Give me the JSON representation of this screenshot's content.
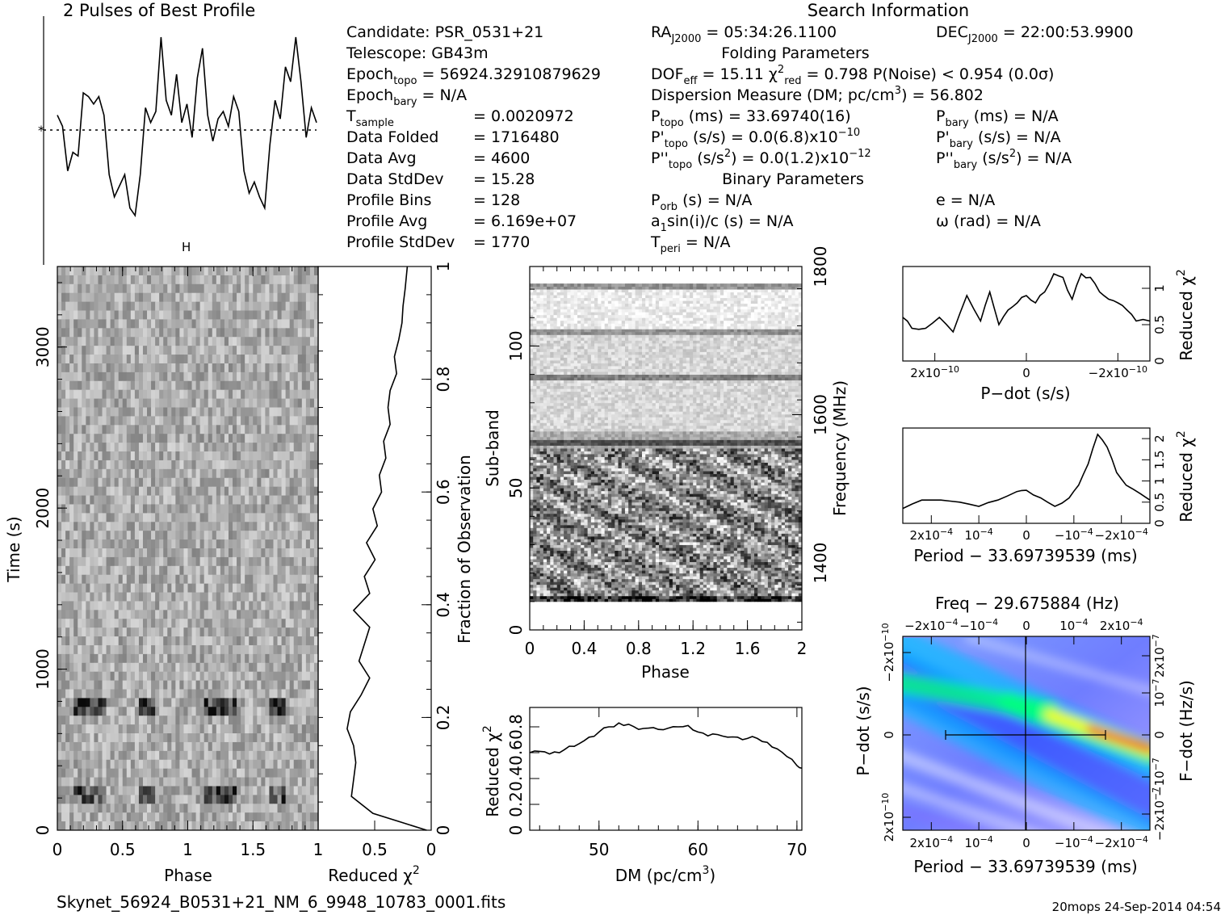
{
  "profile": {
    "title": "2 Pulses of Best Profile",
    "error_bar_label": "H"
  },
  "header": {
    "search_info": "Search Information",
    "folding_params": "Folding Parameters",
    "binary_params": "Binary Parameters"
  },
  "candidate_info": [
    {
      "base": "Candidate:  PSR_0531+21"
    },
    {
      "base": "Telescope:  GB43m"
    },
    {
      "base": "Epoch",
      "sub": "topo",
      "rest": " = 56924.32910879629"
    },
    {
      "base": "Epoch",
      "sub": "bary",
      "rest": " = N/A"
    },
    {
      "base": "T",
      "sub": "sample",
      "rest": "",
      "value": "=   0.0020972"
    },
    {
      "base": "Data Folded",
      "value": "=   1716480"
    },
    {
      "base": "Data Avg",
      "value": "=   4600"
    },
    {
      "base": "Data StdDev",
      "value": "=   15.28"
    },
    {
      "base": "Profile Bins",
      "value": "=   128"
    },
    {
      "base": "Profile Avg",
      "value": "=   6.169e+07"
    },
    {
      "base": "Profile StdDev",
      "value": "=   1770"
    }
  ],
  "search_info": {
    "ra": {
      "base": "RA",
      "sub": "J2000",
      "rest": " = 05:34:26.1100"
    },
    "dec": {
      "base": "DEC",
      "sub": "J2000",
      "rest": " = 22:00:53.9900"
    }
  },
  "folding_lines": {
    "dof_base": "DOF",
    "dof_sub": "eff",
    "dof_rest": " = 15.11   χ",
    "chi_sup": "2",
    "chi_sub": "red",
    "chi_rest": " = 0.798   P(Noise) < 0.954   (0.0σ)",
    "dm_base": "Dispersion Measure (DM; pc/cm",
    "dm_sup": "3",
    "dm_rest": ") = 56.802",
    "ptopo_base": "P",
    "ptopo_sub": "topo",
    "ptopo_rest": " (ms) =  33.69740(16)",
    "pdot_base": "P'",
    "pdot_sub": "topo",
    "pdot_rest": " (s/s) = 0.0(6.8)x10",
    "pdot_exp": "−10",
    "pddot_base": "P''",
    "pddot_sub": "topo",
    "pddot_rest": " (s/s",
    "pddot_sup": "2",
    "pddot_rest2": ") = 0.0(1.2)x10",
    "pddot_exp": "−12",
    "pbary_base": "P",
    "pbary_sub": "bary",
    "pbary_rest": " (ms) = N/A",
    "pdotb_base": "P'",
    "pdotb_sub": "bary",
    "pdotb_rest": " (s/s) = N/A",
    "pddotb_base": "P''",
    "pddotb_sub": "bary",
    "pddotb_rest": " (s/s",
    "pddotb_sup": "2",
    "pddotb_rest2": ") = N/A"
  },
  "binary_lines": {
    "porb_base": "P",
    "porb_sub": "orb",
    "porb_rest": " (s) = N/A",
    "a1_base": "a",
    "a1_sub": "1",
    "a1_rest": "sin(i)/c (s) = N/A",
    "tperi_base": "T",
    "tperi_sub": "peri",
    "tperi_rest": " = N/A",
    "e": "e = N/A",
    "omega": "ω (rad) = N/A"
  },
  "footer": {
    "filename": "Skynet_56924_B0531+21_NM_6_9948_10783_0001.fits",
    "stamp": "20mops 24-Sep-2014 04:54"
  },
  "chart_data": [
    {
      "id": "time-phase",
      "type": "heatmap",
      "xlabel": "Phase",
      "ylabel": "Time (s)",
      "xlim": [
        0,
        2
      ],
      "ylim": [
        0,
        3500
      ],
      "xticks": [
        "0",
        "0.5",
        "1",
        "1.5"
      ],
      "yticks": [
        "0",
        "1000",
        "2000",
        "3000"
      ],
      "right_axis_label": "Fraction of Observation",
      "right_ticks": [
        "0",
        "0.2",
        "0.4",
        "0.6",
        "0.8",
        "1"
      ],
      "dark_bands_time_s": [
        230,
        760
      ]
    },
    {
      "id": "time-chi",
      "type": "line",
      "xlabel": "Reduced χ",
      "xlabel_sup": "2",
      "xticks": [
        "1",
        "0.5",
        "0"
      ],
      "x": [
        0.0,
        0.03,
        0.06,
        0.09,
        0.12,
        0.15,
        0.18,
        0.21,
        0.24,
        0.27,
        0.3,
        0.33,
        0.36,
        0.39,
        0.42,
        0.45,
        0.48,
        0.51,
        0.54,
        0.57,
        0.6,
        0.63,
        0.66,
        0.69,
        0.72,
        0.75,
        0.78,
        0.81,
        0.84,
        0.87,
        0.9,
        0.93,
        0.96,
        1.0
      ],
      "y": [
        0.02,
        0.52,
        0.72,
        0.7,
        0.68,
        0.7,
        0.76,
        0.73,
        0.63,
        0.55,
        0.65,
        0.6,
        0.55,
        0.7,
        0.55,
        0.6,
        0.5,
        0.58,
        0.48,
        0.52,
        0.44,
        0.46,
        0.4,
        0.42,
        0.36,
        0.38,
        0.36,
        0.3,
        0.32,
        0.28,
        0.25,
        0.24,
        0.22,
        0.2
      ]
    },
    {
      "id": "profile",
      "type": "line",
      "x": [
        0.0,
        0.04,
        0.08,
        0.12,
        0.16,
        0.2,
        0.24,
        0.28,
        0.32,
        0.36,
        0.4,
        0.44,
        0.48,
        0.52,
        0.56,
        0.6,
        0.64,
        0.68,
        0.72,
        0.76,
        0.8,
        0.84,
        0.88,
        0.92,
        0.96,
        1.0,
        1.04,
        1.08,
        1.12,
        1.16,
        1.2,
        1.24,
        1.28,
        1.32,
        1.36,
        1.4,
        1.44,
        1.48,
        1.52,
        1.56,
        1.6,
        1.64,
        1.68,
        1.72,
        1.76,
        1.8,
        1.84,
        1.88,
        1.92,
        1.96,
        2.0
      ],
      "y": [
        0.2,
        0.05,
        -0.55,
        -0.3,
        -0.35,
        0.5,
        0.45,
        0.35,
        0.45,
        0.2,
        -0.6,
        -0.9,
        -0.75,
        -0.6,
        -1.05,
        -1.15,
        -0.6,
        0.3,
        0.1,
        0.25,
        1.25,
        0.4,
        0.2,
        0.75,
        0.1,
        0.35,
        -0.1,
        0.7,
        1.1,
        0.2,
        -0.15,
        0.15,
        0.25,
        0.05,
        0.45,
        0.25,
        -0.55,
        -0.85,
        -0.7,
        -0.9,
        -1.05,
        -0.2,
        0.4,
        0.15,
        0.85,
        0.65,
        1.25,
        0.65,
        -0.1,
        0.3,
        0.1
      ]
    },
    {
      "id": "subband",
      "type": "heatmap",
      "xlabel": "Phase",
      "ylabel": "Sub-band",
      "right_axis_label": "Frequency (MHz)",
      "xlim": [
        0,
        2
      ],
      "ylim": [
        0,
        128
      ],
      "xticks": [
        "0",
        "0.4",
        "0.8",
        "1.2",
        "1.6",
        "2"
      ],
      "yticks": [
        "0",
        "50",
        "100"
      ],
      "right_ticks": [
        "1400",
        "1600",
        "1800"
      ]
    },
    {
      "id": "dm",
      "type": "line",
      "xlabel": "DM (pc/cm",
      "xlabel_sup": "3",
      "xlabel_end": ")",
      "ylabel": "Reduced χ",
      "ylabel_sup": "2",
      "xlim": [
        43,
        70.5
      ],
      "ylim": [
        0,
        0.95
      ],
      "xticks": [
        "50",
        "60",
        "70"
      ],
      "yticks": [
        "0",
        "0.2",
        "0.4",
        "0.6",
        "0.8"
      ],
      "x": [
        43,
        44,
        45,
        46,
        47,
        48,
        49,
        50,
        51,
        52,
        53,
        54,
        55,
        56,
        57,
        58,
        59,
        60,
        61,
        62,
        63,
        64,
        65,
        66,
        67,
        68,
        69,
        70,
        70.5
      ],
      "y": [
        0.6,
        0.61,
        0.59,
        0.6,
        0.65,
        0.67,
        0.72,
        0.76,
        0.8,
        0.83,
        0.82,
        0.78,
        0.79,
        0.78,
        0.79,
        0.8,
        0.81,
        0.76,
        0.73,
        0.74,
        0.72,
        0.72,
        0.71,
        0.71,
        0.68,
        0.63,
        0.57,
        0.5,
        0.48
      ]
    },
    {
      "id": "pdot",
      "type": "line",
      "xlabel": "P−dot (s/s)",
      "ylabel": "Reduced χ",
      "ylabel_sup": "2",
      "xlim": [
        2.7e-10,
        -2.7e-10
      ],
      "ylim": [
        0,
        1.3
      ],
      "xtick_labels": [
        "2x10",
        "0",
        "−2x10"
      ],
      "xtick_exp": "−10",
      "yticks": [
        "0",
        "0.5",
        "1"
      ],
      "x": [
        2.7e-10,
        2.5e-10,
        2.2e-10,
        1.9e-10,
        1.6e-10,
        1.3e-10,
        1e-10,
        8e-11,
        6e-11,
        4e-11,
        2e-11,
        0.0,
        -2e-11,
        -4e-11,
        -6e-11,
        -8e-11,
        -1e-10,
        -1.2e-10,
        -1.4e-10,
        -1.6e-10,
        -1.8e-10,
        -2e-10,
        -2.2e-10,
        -2.4e-10,
        -2.7e-10
      ],
      "y": [
        0.6,
        0.45,
        0.45,
        0.6,
        0.4,
        0.9,
        0.55,
        0.95,
        0.5,
        0.7,
        0.8,
        0.9,
        0.8,
        0.95,
        1.2,
        1.15,
        0.85,
        1.2,
        1.15,
        0.95,
        0.85,
        0.8,
        0.7,
        0.55,
        0.55
      ]
    },
    {
      "id": "period",
      "type": "line",
      "xlabel": "Period − 33.69739539 (ms)",
      "ylabel": "Reduced χ",
      "ylabel_sup": "2",
      "xlim": [
        0.00026,
        -0.00026
      ],
      "ylim": [
        0,
        2.25
      ],
      "xtick_labels": [
        "2x10",
        "10",
        "0",
        "−10",
        "−2x10"
      ],
      "xtick_exp": "−4",
      "yticks": [
        "0",
        "0.5",
        "1",
        "1.5",
        "2"
      ],
      "x": [
        0.00026,
        0.00022,
        0.00018,
        0.00014,
        0.0001,
        6e-05,
        2e-05,
        0.0,
        -3e-05,
        -6e-05,
        -9e-05,
        -0.00011,
        -0.00013,
        -0.00015,
        -0.00017,
        -0.00019,
        -0.00021,
        -0.00024,
        -0.00026
      ],
      "y": [
        0.35,
        0.55,
        0.55,
        0.5,
        0.4,
        0.55,
        0.75,
        0.78,
        0.6,
        0.4,
        0.6,
        0.9,
        1.4,
        2.1,
        1.8,
        1.2,
        0.9,
        0.7,
        0.55
      ]
    },
    {
      "id": "pp-dot",
      "type": "heatmap",
      "title": "Freq − 29.675884 (Hz)",
      "xlabel": "Period − 33.69739539 (ms)",
      "ylabel": "P−dot (s/s)",
      "right_axis_label": "F−dot (Hz/s)",
      "xtick_labels": [
        "2x10",
        "10",
        "0",
        "−10",
        "−2x10"
      ],
      "xtick_exp": "−4",
      "top_tick_labels": [
        "−2x10",
        "−10",
        "0",
        "10",
        "2x10"
      ],
      "top_tick_exp": "−4",
      "ytick_labels": [
        "−2x10",
        "0",
        "2x10"
      ],
      "ytick_exp": "−10",
      "right_tick_labels": [
        "2x10",
        "10",
        "0",
        "−10",
        "−2x10"
      ],
      "right_tick_exp": "−7",
      "colors": [
        "#ffffff",
        "#8070ff",
        "#1040ff",
        "#00c0ff",
        "#00ff80",
        "#ffff00",
        "#ff0000"
      ]
    }
  ]
}
